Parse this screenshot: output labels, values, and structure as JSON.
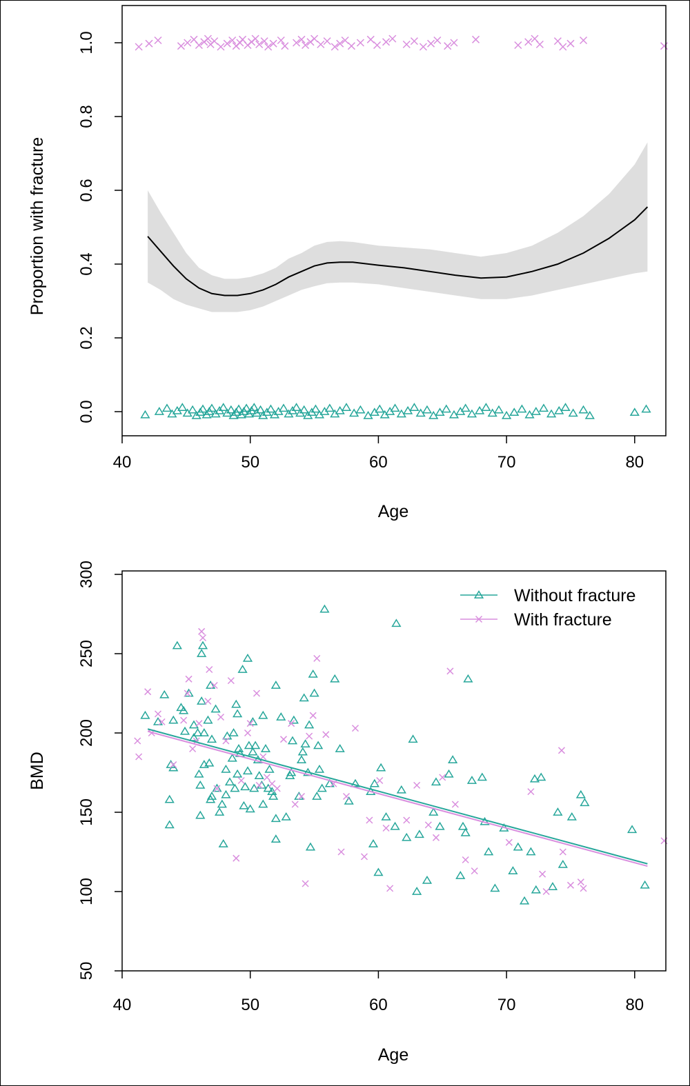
{
  "colors": {
    "without_fracture": "#26a69a",
    "with_fracture": "#d98ede",
    "band": "#dedede",
    "smooth": "#000000"
  },
  "chart_data": [
    {
      "type": "line",
      "xlabel": "Age",
      "ylabel": "Proportion with fracture",
      "xlim": [
        40,
        82.5
      ],
      "ylim": [
        0,
        1
      ],
      "xticks": [
        "40",
        "50",
        "60",
        "70",
        "80"
      ],
      "yticks": [
        "0.0",
        "0.2",
        "0.4",
        "0.6",
        "0.8",
        "1.0"
      ],
      "smooth": {
        "x": [
          42,
          43,
          44,
          45,
          46,
          47,
          48,
          49,
          50,
          51,
          52,
          53,
          54,
          55,
          56,
          57,
          58,
          60,
          62,
          64,
          66,
          68,
          70,
          72,
          74,
          76,
          78,
          80,
          81
        ],
        "y": [
          0.475,
          0.435,
          0.395,
          0.36,
          0.335,
          0.32,
          0.315,
          0.315,
          0.32,
          0.33,
          0.345,
          0.365,
          0.38,
          0.395,
          0.403,
          0.405,
          0.405,
          0.397,
          0.39,
          0.38,
          0.37,
          0.362,
          0.365,
          0.38,
          0.4,
          0.43,
          0.47,
          0.52,
          0.555
        ],
        "lower": [
          0.35,
          0.33,
          0.305,
          0.29,
          0.28,
          0.27,
          0.27,
          0.27,
          0.275,
          0.285,
          0.3,
          0.315,
          0.33,
          0.34,
          0.348,
          0.35,
          0.35,
          0.345,
          0.335,
          0.325,
          0.315,
          0.305,
          0.305,
          0.315,
          0.33,
          0.345,
          0.36,
          0.375,
          0.38
        ],
        "upper": [
          0.6,
          0.54,
          0.485,
          0.43,
          0.39,
          0.37,
          0.36,
          0.36,
          0.365,
          0.375,
          0.39,
          0.415,
          0.43,
          0.45,
          0.46,
          0.462,
          0.46,
          0.45,
          0.445,
          0.44,
          0.43,
          0.42,
          0.43,
          0.45,
          0.485,
          0.53,
          0.59,
          0.67,
          0.73
        ]
      },
      "rug_with_fracture_age": [
        41.3,
        42.1,
        42.8,
        44.6,
        45.1,
        45.6,
        46.0,
        46.4,
        46.7,
        46.9,
        47.2,
        47.7,
        48.2,
        48.6,
        48.9,
        49.2,
        49.4,
        49.8,
        50.1,
        50.4,
        50.7,
        51.1,
        51.4,
        51.8,
        52.4,
        52.7,
        53.6,
        54.0,
        54.3,
        54.7,
        55.0,
        55.5,
        56.0,
        56.6,
        57.0,
        57.4,
        57.9,
        58.6,
        59.4,
        59.9,
        60.6,
        61.1,
        62.2,
        62.8,
        63.5,
        64.1,
        64.6,
        65.4,
        65.9,
        67.6,
        70.9,
        71.7,
        72.2,
        72.6,
        74.0,
        74.4,
        75.0,
        76.0,
        82.3
      ],
      "rug_without_fracture_age": [
        41.8,
        42.9,
        43.5,
        43.9,
        44.3,
        44.7,
        45.1,
        45.5,
        45.8,
        46.1,
        46.3,
        46.6,
        46.8,
        47.0,
        47.3,
        47.6,
        47.9,
        48.2,
        48.5,
        48.7,
        48.9,
        49.1,
        49.3,
        49.5,
        49.7,
        49.9,
        50.1,
        50.3,
        50.5,
        50.8,
        51.0,
        51.3,
        51.6,
        51.9,
        52.2,
        52.6,
        53.0,
        53.3,
        53.6,
        53.9,
        54.2,
        54.5,
        54.8,
        55.1,
        55.4,
        55.8,
        56.2,
        56.6,
        57.0,
        57.5,
        58.1,
        58.6,
        59.2,
        59.7,
        60.1,
        60.5,
        60.9,
        61.3,
        61.8,
        62.3,
        62.8,
        63.3,
        63.8,
        64.3,
        64.8,
        65.3,
        65.9,
        66.4,
        66.8,
        67.3,
        67.9,
        68.4,
        68.9,
        69.4,
        70.0,
        70.6,
        71.2,
        71.8,
        72.3,
        72.9,
        73.5,
        74.1,
        74.6,
        75.2,
        76.0,
        76.5,
        80.0,
        80.9
      ]
    },
    {
      "type": "scatter",
      "xlabel": "Age",
      "ylabel": "BMD",
      "xlim": [
        40,
        82.5
      ],
      "ylim": [
        50,
        300
      ],
      "xticks": [
        "40",
        "50",
        "60",
        "70",
        "80"
      ],
      "yticks": [
        "50",
        "100",
        "150",
        "200",
        "250",
        "300"
      ],
      "legend_position": "top-right",
      "series": [
        {
          "name": "Without fracture",
          "marker": "triangle",
          "points": [
            [
              41.8,
              211
            ],
            [
              42.8,
              207
            ],
            [
              43.3,
              224
            ],
            [
              43.7,
              158
            ],
            [
              43.7,
              142
            ],
            [
              43.8,
              180
            ],
            [
              44.0,
              208
            ],
            [
              44.0,
              178
            ],
            [
              44.3,
              255
            ],
            [
              44.6,
              216
            ],
            [
              44.8,
              214
            ],
            [
              44.9,
              201
            ],
            [
              45.2,
              225
            ],
            [
              45.6,
              197
            ],
            [
              45.6,
              205
            ],
            [
              45.9,
              200
            ],
            [
              46.0,
              174
            ],
            [
              46.1,
              148
            ],
            [
              46.1,
              167
            ],
            [
              46.2,
              220
            ],
            [
              46.2,
              250
            ],
            [
              46.3,
              255
            ],
            [
              46.4,
              180
            ],
            [
              46.4,
              200
            ],
            [
              46.7,
              208
            ],
            [
              46.8,
              181
            ],
            [
              46.9,
              230
            ],
            [
              46.9,
              158
            ],
            [
              47.0,
              196
            ],
            [
              47.0,
              160
            ],
            [
              47.3,
              215
            ],
            [
              47.4,
              165
            ],
            [
              47.6,
              150
            ],
            [
              47.8,
              155
            ],
            [
              47.9,
              130
            ],
            [
              48.1,
              161
            ],
            [
              48.1,
              177
            ],
            [
              48.2,
              198
            ],
            [
              48.4,
              169
            ],
            [
              48.6,
              184
            ],
            [
              48.7,
              200
            ],
            [
              48.8,
              165
            ],
            [
              48.9,
              218
            ],
            [
              49.0,
              212
            ],
            [
              49.0,
              174
            ],
            [
              49.1,
              190
            ],
            [
              49.2,
              187
            ],
            [
              49.4,
              240
            ],
            [
              49.5,
              154
            ],
            [
              49.6,
              166
            ],
            [
              49.8,
              176
            ],
            [
              49.8,
              247
            ],
            [
              49.9,
              192
            ],
            [
              50.0,
              152
            ],
            [
              50.2,
              188
            ],
            [
              50.2,
              207
            ],
            [
              50.3,
              165
            ],
            [
              50.4,
              192
            ],
            [
              50.6,
              183
            ],
            [
              50.7,
              173
            ],
            [
              50.9,
              167
            ],
            [
              51.0,
              211
            ],
            [
              51.0,
              155
            ],
            [
              51.2,
              190
            ],
            [
              51.4,
              165
            ],
            [
              51.5,
              177
            ],
            [
              51.7,
              163
            ],
            [
              51.8,
              160
            ],
            [
              52.0,
              146
            ],
            [
              52.0,
              133
            ],
            [
              52.0,
              230
            ],
            [
              52.4,
              210
            ],
            [
              52.8,
              147
            ],
            [
              53.1,
              173
            ],
            [
              53.2,
              175
            ],
            [
              53.3,
              195
            ],
            [
              53.4,
              208
            ],
            [
              53.8,
              160
            ],
            [
              54.0,
              183
            ],
            [
              54.1,
              188
            ],
            [
              54.2,
              222
            ],
            [
              54.3,
              193
            ],
            [
              54.5,
              175
            ],
            [
              54.6,
              205
            ],
            [
              54.7,
              128
            ],
            [
              54.9,
              237
            ],
            [
              55.0,
              225
            ],
            [
              55.2,
              160
            ],
            [
              55.3,
              192
            ],
            [
              55.4,
              177
            ],
            [
              55.6,
              165
            ],
            [
              55.8,
              278
            ],
            [
              56.2,
              168
            ],
            [
              56.6,
              234
            ],
            [
              57.0,
              190
            ],
            [
              57.7,
              157
            ],
            [
              58.2,
              168
            ],
            [
              59.4,
              163
            ],
            [
              59.6,
              130
            ],
            [
              59.7,
              168
            ],
            [
              60.0,
              112
            ],
            [
              60.2,
              178
            ],
            [
              60.6,
              147
            ],
            [
              61.3,
              141
            ],
            [
              61.4,
              269
            ],
            [
              61.8,
              164
            ],
            [
              62.2,
              134
            ],
            [
              62.7,
              196
            ],
            [
              63.0,
              100
            ],
            [
              63.2,
              136
            ],
            [
              63.8,
              107
            ],
            [
              64.3,
              150
            ],
            [
              64.5,
              169
            ],
            [
              64.8,
              141
            ],
            [
              65.5,
              174
            ],
            [
              65.8,
              183
            ],
            [
              66.4,
              110
            ],
            [
              66.6,
              141
            ],
            [
              66.8,
              137
            ],
            [
              67.0,
              234
            ],
            [
              67.3,
              170
            ],
            [
              68.1,
              172
            ],
            [
              68.3,
              144
            ],
            [
              68.6,
              125
            ],
            [
              69.1,
              102
            ],
            [
              69.8,
              140
            ],
            [
              70.5,
              113
            ],
            [
              70.9,
              128
            ],
            [
              71.4,
              94
            ],
            [
              71.9,
              125
            ],
            [
              72.2,
              171
            ],
            [
              72.3,
              101
            ],
            [
              72.7,
              172
            ],
            [
              73.6,
              103
            ],
            [
              74.0,
              150
            ],
            [
              74.4,
              117
            ],
            [
              75.1,
              147
            ],
            [
              75.8,
              161
            ],
            [
              76.1,
              156
            ],
            [
              79.8,
              139
            ],
            [
              80.8,
              104
            ]
          ],
          "fit": {
            "x": [
              42,
              81
            ],
            "y": [
              202.5,
              117.5
            ]
          }
        },
        {
          "name": "With fracture",
          "marker": "cross",
          "points": [
            [
              41.2,
              195
            ],
            [
              41.3,
              185
            ],
            [
              42.0,
              226
            ],
            [
              42.3,
              200
            ],
            [
              42.8,
              212
            ],
            [
              43.1,
              207
            ],
            [
              44.0,
              180
            ],
            [
              44.8,
              208
            ],
            [
              45.1,
              225
            ],
            [
              45.2,
              234
            ],
            [
              45.5,
              190
            ],
            [
              45.8,
              195
            ],
            [
              46.0,
              206
            ],
            [
              46.2,
              264
            ],
            [
              46.3,
              260
            ],
            [
              46.7,
              220
            ],
            [
              46.8,
              240
            ],
            [
              47.2,
              230
            ],
            [
              47.4,
              165
            ],
            [
              47.7,
              210
            ],
            [
              48.1,
              195
            ],
            [
              48.5,
              233
            ],
            [
              48.9,
              121
            ],
            [
              49.3,
              170
            ],
            [
              49.8,
              200
            ],
            [
              50.0,
              206
            ],
            [
              50.5,
              225
            ],
            [
              50.7,
              167
            ],
            [
              51.0,
              185
            ],
            [
              51.3,
              172
            ],
            [
              51.7,
              168
            ],
            [
              52.1,
              165
            ],
            [
              52.6,
              196
            ],
            [
              53.2,
              206
            ],
            [
              53.5,
              155
            ],
            [
              54.0,
              160
            ],
            [
              54.3,
              105
            ],
            [
              54.6,
              198
            ],
            [
              54.9,
              211
            ],
            [
              55.2,
              247
            ],
            [
              55.9,
              199
            ],
            [
              56.5,
              168
            ],
            [
              57.1,
              125
            ],
            [
              57.5,
              160
            ],
            [
              58.2,
              203
            ],
            [
              58.9,
              122
            ],
            [
              59.3,
              145
            ],
            [
              60.1,
              170
            ],
            [
              60.6,
              140
            ],
            [
              60.9,
              102
            ],
            [
              62.2,
              145
            ],
            [
              63.0,
              167
            ],
            [
              63.9,
              142
            ],
            [
              64.5,
              134
            ],
            [
              65.0,
              172
            ],
            [
              65.6,
              239
            ],
            [
              66.0,
              155
            ],
            [
              66.8,
              120
            ],
            [
              67.5,
              113
            ],
            [
              70.2,
              131
            ],
            [
              71.9,
              163
            ],
            [
              72.8,
              111
            ],
            [
              73.1,
              100
            ],
            [
              74.3,
              189
            ],
            [
              74.4,
              125
            ],
            [
              75.0,
              104
            ],
            [
              75.8,
              106
            ],
            [
              76.0,
              102
            ],
            [
              82.3,
              132
            ]
          ],
          "fit": {
            "x": [
              42,
              81
            ],
            "y": [
              201.0,
              116.0
            ]
          }
        }
      ]
    }
  ]
}
